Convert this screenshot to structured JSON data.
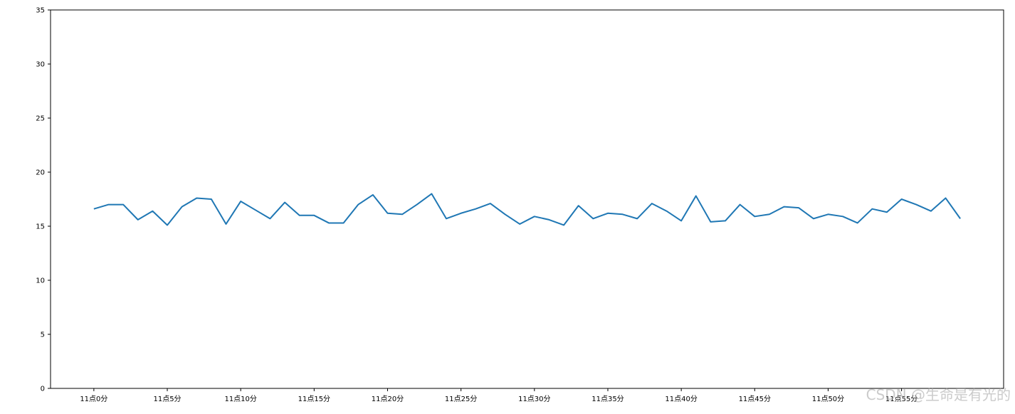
{
  "chart_data": {
    "type": "line",
    "categories": [
      "11点0分",
      null,
      null,
      null,
      null,
      "11点5分",
      null,
      null,
      null,
      null,
      "11点10分",
      null,
      null,
      null,
      null,
      "11点15分",
      null,
      null,
      null,
      null,
      "11点20分",
      null,
      null,
      null,
      null,
      "11点25分",
      null,
      null,
      null,
      null,
      "11点30分",
      null,
      null,
      null,
      null,
      "11点35分",
      null,
      null,
      null,
      null,
      "11点40分",
      null,
      null,
      null,
      null,
      "11点45分",
      null,
      null,
      null,
      null,
      "11点50分",
      null,
      null,
      null,
      null,
      "11点55分",
      null,
      null,
      null,
      null
    ],
    "series": [
      {
        "color": "#1f77b4",
        "values": [
          16.6,
          17.0,
          17.0,
          15.6,
          16.4,
          15.1,
          16.8,
          17.6,
          17.5,
          15.2,
          17.3,
          16.5,
          15.7,
          17.2,
          16.0,
          16.0,
          15.3,
          15.3,
          17.0,
          17.9,
          16.2,
          16.1,
          17.0,
          18.0,
          15.7,
          16.2,
          16.6,
          17.1,
          16.1,
          15.2,
          15.9,
          15.6,
          15.1,
          16.9,
          15.7,
          16.2,
          16.1,
          15.7,
          17.1,
          16.4,
          15.5,
          17.8,
          15.4,
          15.5,
          17.0,
          15.9,
          16.1,
          16.8,
          16.7,
          15.7,
          16.1,
          15.9,
          15.3,
          16.6,
          16.3,
          17.5,
          17.0,
          16.4,
          17.6,
          15.7
        ]
      }
    ],
    "ylim": [
      0,
      35
    ],
    "yticks": [
      0,
      5,
      10,
      15,
      20,
      25,
      30,
      35
    ],
    "grid": false,
    "watermark": "CSDN @生命是有光的"
  }
}
